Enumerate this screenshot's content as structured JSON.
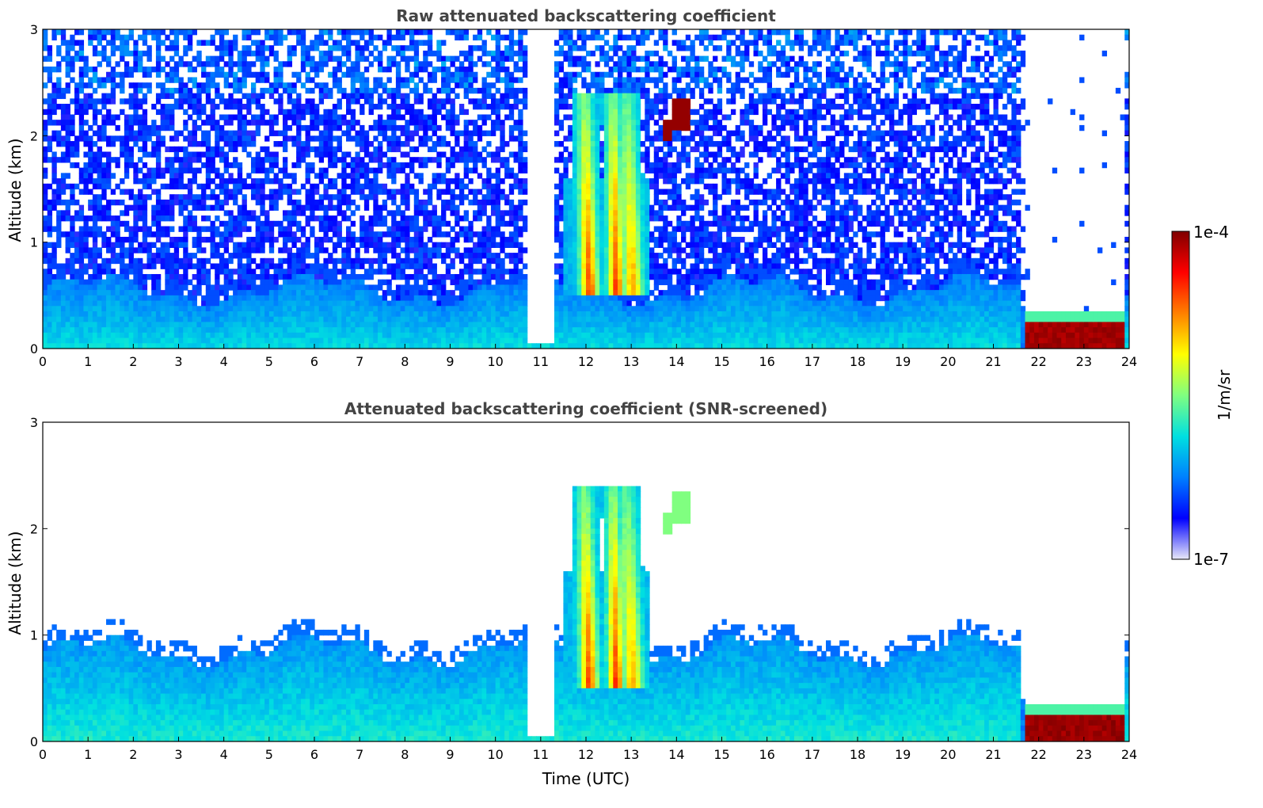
{
  "chart_data": [
    {
      "type": "heatmap",
      "title": "Raw attenuated backscattering coefficient",
      "xlabel": "",
      "ylabel": "Altitude (km)",
      "xlim": [
        0,
        24
      ],
      "ylim": [
        0,
        3
      ],
      "xticks": [
        "0",
        "1",
        "2",
        "3",
        "4",
        "5",
        "6",
        "7",
        "8",
        "9",
        "10",
        "11",
        "12",
        "13",
        "14",
        "15",
        "16",
        "17",
        "18",
        "19",
        "20",
        "21",
        "22",
        "23",
        "24"
      ],
      "yticks": [
        "0",
        "1",
        "2",
        "3"
      ],
      "features": [
        {
          "name": "boundary-layer",
          "t0": 0,
          "t1": 21.6,
          "top_km": 0.55,
          "level": 0.25
        },
        {
          "name": "noise",
          "t0": 0,
          "t1": 21.8,
          "top_km": 3,
          "level": 0.15
        },
        {
          "name": "rain-fall-streaks",
          "t0": 11.5,
          "t1": 13.4,
          "bottom_km": 0.5,
          "top_km": 2.4,
          "level": 0.6
        },
        {
          "name": "high-cloud",
          "t": 14.1,
          "alt_km": 2.2,
          "level": 0.98
        },
        {
          "name": "fog-layer",
          "t0": 21.7,
          "t1": 23.9,
          "top_km": 0.25,
          "level": 0.99
        }
      ]
    },
    {
      "type": "heatmap",
      "title": "Attenuated backscattering coefficient (SNR-screened)",
      "xlabel": "Time (UTC)",
      "ylabel": "Altitude (km)",
      "xlim": [
        0,
        24
      ],
      "ylim": [
        0,
        3
      ],
      "xticks": [
        "0",
        "1",
        "2",
        "3",
        "4",
        "5",
        "6",
        "7",
        "8",
        "9",
        "10",
        "11",
        "12",
        "13",
        "14",
        "15",
        "16",
        "17",
        "18",
        "19",
        "20",
        "21",
        "22",
        "23",
        "24"
      ],
      "yticks": [
        "0",
        "1",
        "2",
        "3"
      ],
      "features": [
        {
          "name": "boundary-layer",
          "t0": 0,
          "t1": 21.6,
          "top_km": 0.85,
          "level": 0.28
        },
        {
          "name": "rain-fall-streaks",
          "t0": 11.5,
          "t1": 13.4,
          "bottom_km": 0.5,
          "top_km": 2.4,
          "level": 0.6
        },
        {
          "name": "high-cloud",
          "t": 14.1,
          "alt_km": 2.2,
          "level": 0.5
        },
        {
          "name": "fog-layer",
          "t0": 21.7,
          "t1": 23.9,
          "top_km": 0.25,
          "level": 1.0
        }
      ]
    }
  ],
  "colorbar": {
    "label": "1/m/sr",
    "min_label": "1e-7",
    "max_label": "1e-4",
    "colormap": [
      "#e8e8f8",
      "#0000ff",
      "#0080ff",
      "#00e0e0",
      "#80ff80",
      "#ffff00",
      "#ff8000",
      "#ff0000",
      "#800000"
    ]
  }
}
